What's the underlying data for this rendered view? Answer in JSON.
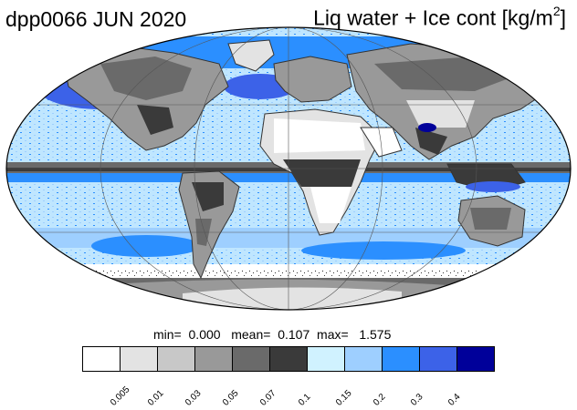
{
  "header": {
    "left_title": "dpp0066 JUN 2020",
    "right_title": "Liq water + Ice cont [kg/m",
    "right_title_sup": "2",
    "right_title_close": "]"
  },
  "stats": {
    "min_label": "min=",
    "min_value": "0.000",
    "mean_label": "mean=",
    "mean_value": "0.107",
    "max_label": "max=",
    "max_value": "1.575"
  },
  "colorbar": {
    "colors": [
      "#ffffff",
      "#e3e3e3",
      "#c8c8c8",
      "#999999",
      "#6a6a6a",
      "#3a3a3a",
      "#d0f2ff",
      "#9ecfff",
      "#2b8fff",
      "#3c62e8",
      "#00009a"
    ],
    "ticks": [
      "0.005",
      "0.01",
      "0.03",
      "0.05",
      "0.07",
      "0.1",
      "0.15",
      "0.2",
      "0.3",
      "0.4"
    ]
  }
}
